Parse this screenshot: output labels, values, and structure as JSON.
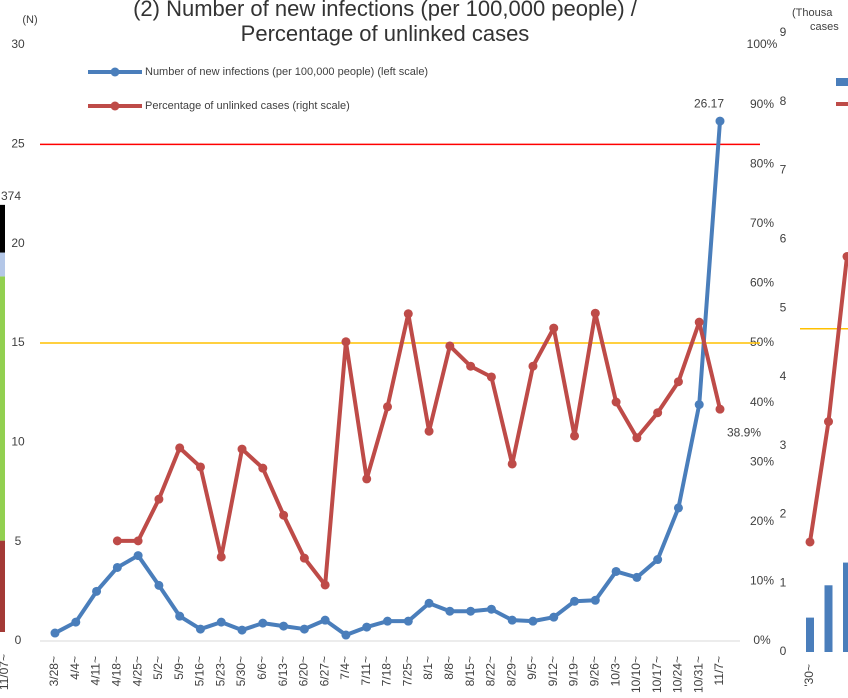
{
  "chart_data": [
    {
      "type": "line",
      "title": [
        "(2) Number of new infections (per 100,000 people) /",
        "Percentage of unlinked cases"
      ],
      "y_label": "(N)",
      "categories": [
        "3/28~",
        "4/4~",
        "4/11~",
        "4/18~",
        "4/25~",
        "5/2~",
        "5/9~",
        "5/16~",
        "5/23~",
        "5/30~",
        "6/6~",
        "6/13~",
        "6/20~",
        "6/27~",
        "7/4~",
        "7/11~",
        "7/18~",
        "7/25~",
        "8/1~",
        "8/8~",
        "8/15~",
        "8/22~",
        "8/29~",
        "9/5~",
        "9/12~",
        "9/19~",
        "9/26~",
        "10/3~",
        "10/10~",
        "10/17~",
        "10/24~",
        "10/31~",
        "11/7~"
      ],
      "series": [
        {
          "name": "Number of new infections (per 100,000 people) (left scale)",
          "color": "#4a7ebb",
          "axis": "y",
          "values": [
            0.4,
            0.95,
            2.5,
            3.7,
            4.3,
            2.8,
            1.25,
            0.6,
            0.95,
            0.55,
            0.9,
            0.75,
            0.6,
            1.05,
            0.3,
            0.7,
            1.0,
            1.0,
            1.9,
            1.5,
            1.5,
            1.6,
            1.05,
            1.0,
            1.2,
            2.0,
            2.05,
            3.5,
            3.2,
            4.1,
            6.7,
            11.9,
            26.17
          ],
          "value_labels": [
            null,
            null,
            null,
            null,
            null,
            null,
            null,
            null,
            null,
            null,
            null,
            null,
            null,
            null,
            null,
            null,
            null,
            null,
            null,
            null,
            null,
            null,
            null,
            null,
            null,
            null,
            null,
            null,
            null,
            null,
            null,
            null,
            "26.17"
          ]
        },
        {
          "name": "Percentage of unlinked cases (right scale)",
          "color": "#be4b48",
          "axis": "y2",
          "values": [
            null,
            null,
            null,
            16.8,
            16.8,
            23.8,
            32.4,
            29.2,
            14.1,
            32.2,
            29.0,
            21.1,
            13.9,
            9.4,
            50.2,
            27.2,
            39.3,
            54.9,
            35.2,
            49.5,
            46.1,
            44.3,
            29.7,
            46.1,
            52.5,
            34.4,
            55.0,
            40.1,
            34.1,
            38.3,
            43.5,
            53.5,
            38.9
          ],
          "value_labels": [
            null,
            null,
            null,
            null,
            null,
            null,
            null,
            null,
            null,
            null,
            null,
            null,
            null,
            null,
            null,
            null,
            null,
            null,
            null,
            null,
            null,
            null,
            null,
            null,
            null,
            null,
            null,
            null,
            null,
            null,
            null,
            null,
            "38.9%"
          ]
        }
      ],
      "ylim": [
        0,
        30
      ],
      "yticks": [
        0,
        5,
        10,
        15,
        20,
        25,
        30
      ],
      "y2lim": [
        0,
        100
      ],
      "y2ticks": [
        {
          "value": 0,
          "label": "0%"
        },
        {
          "value": 10,
          "label": "10%"
        },
        {
          "value": 20,
          "label": "20%"
        },
        {
          "value": 30,
          "label": "30%"
        },
        {
          "value": 40,
          "label": "40%"
        },
        {
          "value": 50,
          "label": "50%"
        },
        {
          "value": 60,
          "label": "60%"
        },
        {
          "value": 70,
          "label": "70%"
        },
        {
          "value": 80,
          "label": "80%"
        },
        {
          "value": 90,
          "label": "90%"
        },
        {
          "value": 100,
          "label": "100%"
        }
      ],
      "reference_lines": [
        {
          "value": 25,
          "color": "#ff0000"
        },
        {
          "value": 15,
          "color": "#ffc000"
        }
      ],
      "legend": "top-left"
    },
    {
      "type": "stacked_bar",
      "categories": [
        "11/07~"
      ],
      "annotation": "374",
      "ylim": [
        0,
        30
      ],
      "series": [
        {
          "color": "#a33a36",
          "values": [
            4.6
          ]
        },
        {
          "color": "#92d050",
          "values": [
            13.3
          ]
        },
        {
          "color": "#b4c7e7",
          "values": [
            1.2
          ]
        },
        {
          "color": "#000000",
          "values": [
            2.4
          ]
        }
      ]
    },
    {
      "type": "bar_line",
      "y_label": [
        "(Thousa",
        "cases"
      ],
      "categories": [
        "'30~",
        null,
        null
      ],
      "ylim": [
        0,
        9
      ],
      "yticks": [
        0,
        1,
        2,
        3,
        4,
        5,
        6,
        7,
        8,
        9
      ],
      "series": [
        {
          "color": "#4a7ebb",
          "kind": "bar",
          "values": [
            0.5,
            0.97,
            1.3
          ]
        },
        {
          "color": "#be4b48",
          "kind": "line",
          "values": [
            1.6,
            3.35,
            5.75
          ]
        }
      ],
      "reference_lines": [
        {
          "value": 4.7,
          "color": "#ffc000"
        }
      ]
    }
  ]
}
